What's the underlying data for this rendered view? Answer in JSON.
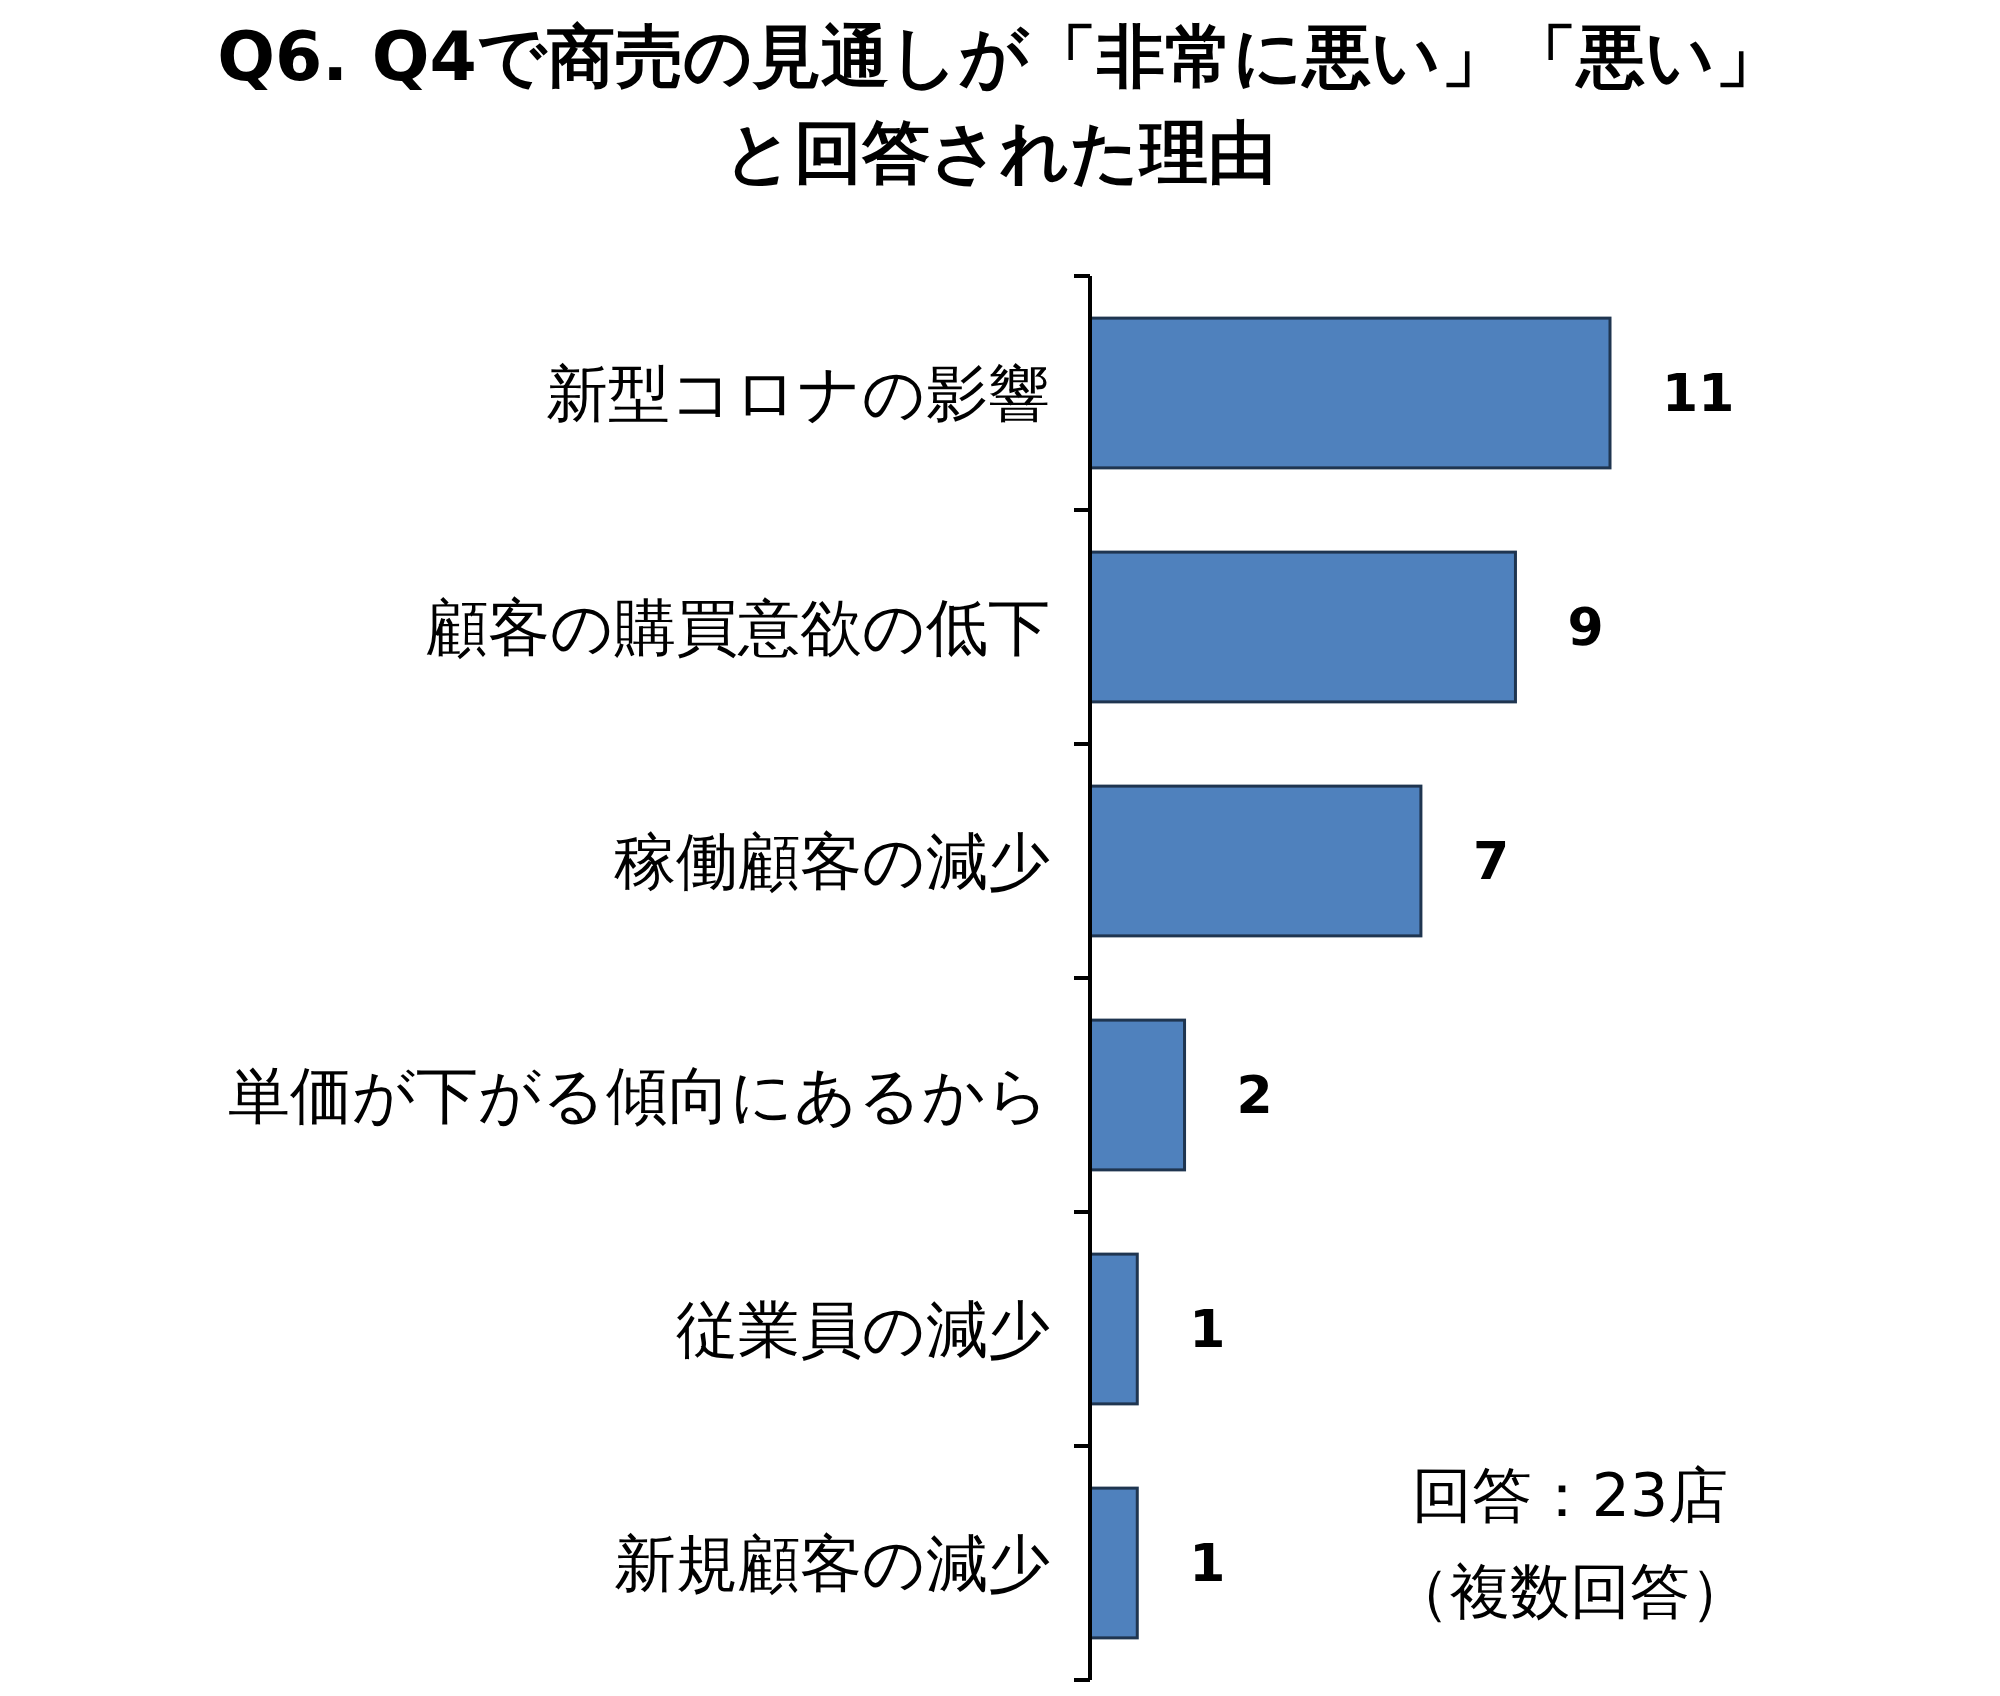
{
  "chart_data": {
    "type": "bar",
    "orientation": "horizontal",
    "title": "Q6. Q4で商売の見通しが「非常に悪い」「悪い」と回答された理由",
    "categories": [
      "新型コロナの影響",
      "顧客の購買意欲の低下",
      "稼働顧客の減少",
      "単価が下がる傾向にあるから",
      "従業員の減少",
      "新規顧客の減少"
    ],
    "values": [
      11,
      9,
      7,
      2,
      1,
      1
    ],
    "color": "#4f81bd",
    "data_labels": true,
    "annotations": [
      "回答：23店",
      "（複数回答）"
    ]
  }
}
